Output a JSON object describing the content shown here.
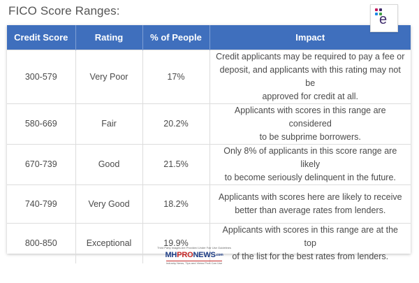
{
  "page": {
    "title": "FICO Score Ranges:"
  },
  "logo": {
    "letter": "e",
    "dot_colors": [
      "#c2185b",
      "#3d2a6b",
      "#1e88e5",
      "#43a047"
    ]
  },
  "table": {
    "header_color": "#3f6fbd",
    "columns": [
      "Credit Score",
      "Rating",
      "% of People",
      "Impact"
    ],
    "rows": [
      {
        "score": "300-579",
        "rating": "Very Poor",
        "percent": "17%",
        "impact_lines": [
          "Credit applicants may be required to pay a fee or",
          "deposit, and applicants with this rating may not be",
          "approved for credit at all."
        ]
      },
      {
        "score": "580-669",
        "rating": "Fair",
        "percent": "20.2%",
        "impact_lines": [
          "Applicants with scores in this range are considered",
          "to be subprime borrowers."
        ]
      },
      {
        "score": "670-739",
        "rating": "Good",
        "percent": "21.5%",
        "impact_lines": [
          "Only 8% of applicants in this score range are likely",
          "to become seriously delinquent in the future."
        ]
      },
      {
        "score": "740-799",
        "rating": "Very Good",
        "percent": "18.2%",
        "impact_lines": [
          "Applicants with scores here are likely to receive",
          "better than average rates from lenders."
        ]
      },
      {
        "score": "800-850",
        "rating": "Exceptional",
        "percent": "19.9%",
        "impact_lines": [
          "Applicants with scores in this range are at the top",
          "of the list for the best rates from lenders."
        ]
      }
    ]
  },
  "watermark": {
    "note": "Third Party images Are Provided Under Fair Use Guidelines",
    "brand_pre": "MH",
    "brand_mid": "PRO",
    "brand_post": "NEWS",
    "brand_suffix": ".com",
    "tagline": "Industry News, Tips and Views Pros Can Use"
  }
}
